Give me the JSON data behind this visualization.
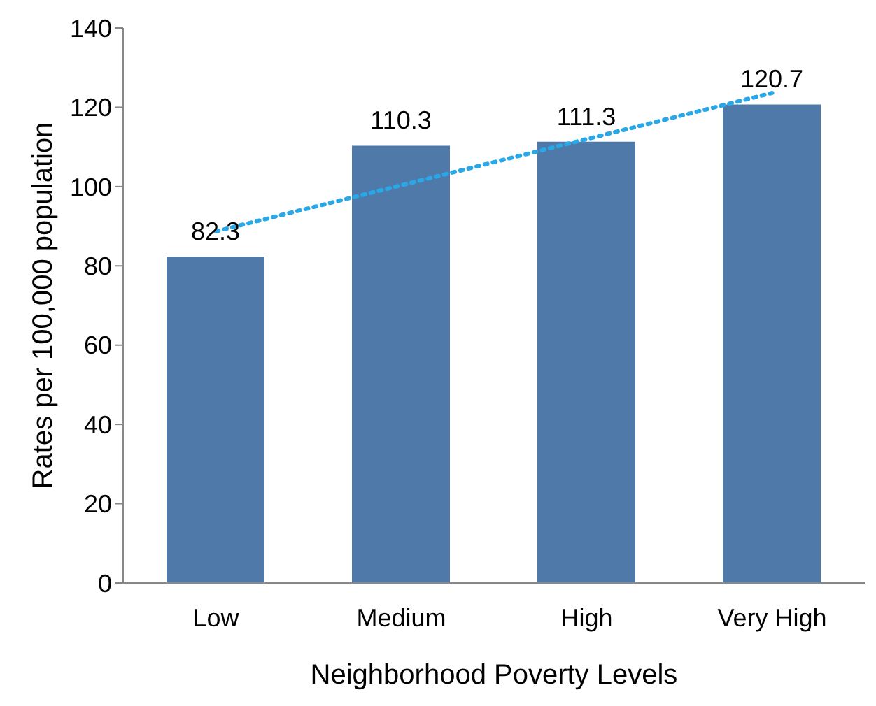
{
  "chart_data": {
    "type": "bar",
    "xlabel": "Neighborhood Poverty Levels",
    "ylabel": "Rates per 100,000 population",
    "categories": [
      "Low",
      "Medium",
      "High",
      "Very High"
    ],
    "series": [
      {
        "color": "#4e79a8",
        "values": [
          82.3,
          110.3,
          111.3,
          120.7
        ],
        "value_labels": [
          "82.3",
          "110.3",
          "111.3",
          "120.7"
        ]
      },
      {
        "type": "line",
        "x": [
          "Low",
          "Very High"
        ],
        "values": [
          88.7,
          123.6
        ],
        "color": "#2aa7e6",
        "line_style": "dotted",
        "marker": "none"
      }
    ],
    "ylim": [
      0,
      140
    ],
    "yticks": [
      0,
      20,
      40,
      60,
      80,
      100,
      120,
      140
    ],
    "grid": false,
    "legend": false
  }
}
